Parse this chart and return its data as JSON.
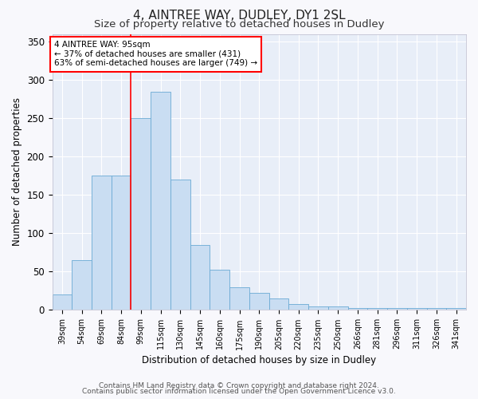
{
  "title1": "4, AINTREE WAY, DUDLEY, DY1 2SL",
  "title2": "Size of property relative to detached houses in Dudley",
  "xlabel": "Distribution of detached houses by size in Dudley",
  "ylabel": "Number of detached properties",
  "categories": [
    "39sqm",
    "54sqm",
    "69sqm",
    "84sqm",
    "99sqm",
    "115sqm",
    "130sqm",
    "145sqm",
    "160sqm",
    "175sqm",
    "190sqm",
    "205sqm",
    "220sqm",
    "235sqm",
    "250sqm",
    "266sqm",
    "281sqm",
    "296sqm",
    "311sqm",
    "326sqm",
    "341sqm"
  ],
  "bar_heights": [
    20,
    65,
    175,
    175,
    250,
    285,
    170,
    85,
    52,
    30,
    22,
    15,
    8,
    5,
    5,
    3,
    3,
    3,
    3,
    3,
    3
  ],
  "bar_color": "#c9ddf2",
  "bar_edge_color": "#6aaad4",
  "background_color": "#e8eef8",
  "vline_color": "red",
  "vline_x": 3.5,
  "annotation_text": "4 AINTREE WAY: 95sqm\n← 37% of detached houses are smaller (431)\n63% of semi-detached houses are larger (749) →",
  "footer1": "Contains HM Land Registry data © Crown copyright and database right 2024.",
  "footer2": "Contains public sector information licensed under the Open Government Licence v3.0.",
  "ylim": [
    0,
    360
  ],
  "yticks": [
    0,
    50,
    100,
    150,
    200,
    250,
    300,
    350
  ]
}
